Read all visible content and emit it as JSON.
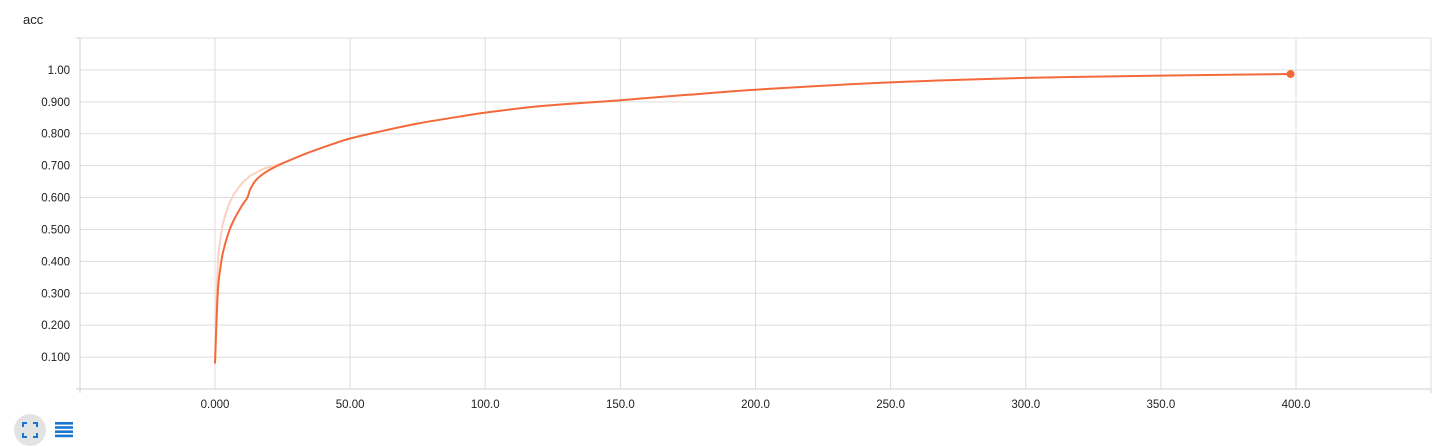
{
  "chart_data": {
    "type": "line",
    "title": "acc",
    "xlabel": "",
    "ylabel": "",
    "xlim": [
      -50,
      400
    ],
    "ylim": [
      0,
      1.1
    ],
    "grid": true,
    "x_ticks": [
      "0.000",
      "50.00",
      "100.0",
      "150.0",
      "200.0",
      "250.0",
      "300.0",
      "350.0",
      "400.0"
    ],
    "x_tick_values": [
      0,
      50,
      100,
      150,
      200,
      250,
      300,
      350,
      400
    ],
    "y_ticks": [
      "0.100",
      "0.200",
      "0.300",
      "0.400",
      "0.500",
      "0.600",
      "0.700",
      "0.800",
      "0.900",
      "1.00"
    ],
    "y_tick_values": [
      0.1,
      0.2,
      0.3,
      0.4,
      0.5,
      0.6,
      0.7,
      0.8,
      0.9,
      1.0
    ],
    "series": [
      {
        "color": "#f4693a",
        "raw_color": "#fbd2c2",
        "smoothed": {
          "x": [
            0,
            1,
            2,
            3,
            5,
            7,
            10,
            12,
            13,
            15,
            18,
            22,
            28,
            35,
            45,
            50,
            60,
            75,
            90,
            100,
            120,
            150,
            175,
            200,
            250,
            300,
            350,
            398
          ],
          "y": [
            0.08,
            0.3,
            0.38,
            0.43,
            0.49,
            0.53,
            0.575,
            0.6,
            0.625,
            0.653,
            0.675,
            0.695,
            0.718,
            0.742,
            0.772,
            0.785,
            0.805,
            0.832,
            0.853,
            0.866,
            0.886,
            0.905,
            0.922,
            0.938,
            0.961,
            0.975,
            0.982,
            0.987
          ]
        },
        "raw": {
          "x": [
            0,
            1,
            2,
            3,
            5,
            7,
            10,
            12,
            13,
            15,
            18,
            22,
            28
          ],
          "y": [
            0.08,
            0.38,
            0.47,
            0.52,
            0.575,
            0.61,
            0.645,
            0.66,
            0.668,
            0.677,
            0.69,
            0.7,
            0.718
          ]
        }
      }
    ]
  },
  "toolbar": {
    "fullscreen_icon": "fullscreen-icon",
    "legend_icon": "list-icon",
    "accent_color": "#1976d2"
  }
}
